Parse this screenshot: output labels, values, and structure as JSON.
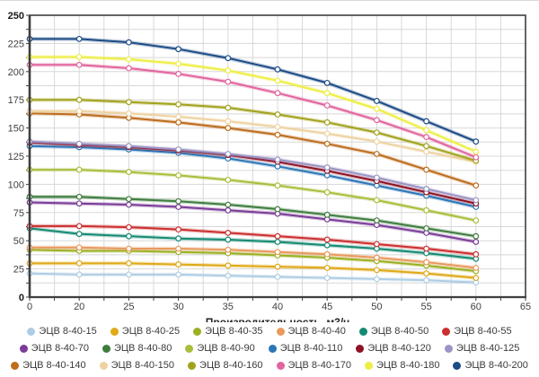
{
  "chart_data": {
    "type": "line",
    "title": "",
    "xlabel": "Производительность, м3/ч",
    "ylabel": "",
    "x_tick_labels": [
      "0",
      "20",
      "25",
      "30",
      "35",
      "40",
      "45",
      "50",
      "55",
      "60",
      "65"
    ],
    "data_x_categories": [
      "0",
      "20",
      "25",
      "30",
      "35",
      "40",
      "45",
      "50",
      "55",
      "60"
    ],
    "ylim": [
      0,
      250
    ],
    "y_major_step": 25,
    "y_minor_step": 12.5,
    "grid": true,
    "legend_position": "bottom",
    "marker": "open-circle",
    "axis_color": "#3f3f3f",
    "grid_color": "#d8d8d8",
    "series": [
      {
        "name": "ЭЦВ 8-40-15",
        "color": "#aecde4",
        "values": [
          21,
          20,
          20,
          20,
          19,
          18,
          17,
          16,
          15,
          13
        ]
      },
      {
        "name": "ЭЦВ 8-40-25",
        "color": "#dfa918",
        "values": [
          30,
          30,
          30,
          29,
          28,
          27,
          26,
          24,
          21,
          17
        ]
      },
      {
        "name": "ЭЦВ 8-40-35",
        "color": "#9cb023",
        "values": [
          42,
          41,
          41,
          40,
          39,
          37,
          35,
          32,
          28,
          23
        ]
      },
      {
        "name": "ЭЦВ 8-40-40",
        "color": "#e9995d",
        "values": [
          44,
          44,
          43,
          43,
          42,
          40,
          38,
          35,
          31,
          26
        ]
      },
      {
        "name": "ЭЦВ 8-40-50",
        "color": "#158a72",
        "values": [
          61,
          56,
          54,
          52,
          51,
          49,
          46,
          43,
          39,
          34
        ]
      },
      {
        "name": "ЭЦВ 8-40-55",
        "color": "#cb2f2f",
        "values": [
          63,
          63,
          62,
          60,
          57,
          54,
          51,
          47,
          43,
          38
        ]
      },
      {
        "name": "ЭЦВ 8-40-70",
        "color": "#7b3c98",
        "values": [
          84,
          83,
          82,
          80,
          77,
          74,
          69,
          64,
          57,
          49
        ]
      },
      {
        "name": "ЭЦВ 8-40-80",
        "color": "#3e7d3e",
        "values": [
          89,
          89,
          87,
          85,
          82,
          78,
          73,
          68,
          61,
          54
        ]
      },
      {
        "name": "ЭЦВ 8-40-90",
        "color": "#a8bf3c",
        "values": [
          113,
          113,
          111,
          108,
          104,
          99,
          93,
          86,
          77,
          68
        ]
      },
      {
        "name": "ЭЦВ 8-40-110",
        "color": "#2c76b7",
        "values": [
          134,
          133,
          131,
          128,
          123,
          116,
          108,
          99,
          90,
          80
        ]
      },
      {
        "name": "ЭЦВ 8-40-120",
        "color": "#8e1224",
        "values": [
          137,
          135,
          133,
          130,
          126,
          120,
          112,
          103,
          93,
          83
        ]
      },
      {
        "name": "ЭЦВ 8-40-125",
        "color": "#9b94c5",
        "values": [
          138,
          136,
          134,
          131,
          127,
          122,
          115,
          106,
          96,
          86
        ]
      },
      {
        "name": "ЭЦВ 8-40-140",
        "color": "#bd6d1d",
        "values": [
          163,
          162,
          159,
          155,
          150,
          144,
          136,
          127,
          113,
          99
        ]
      },
      {
        "name": "ЭЦВ 8-40-150",
        "color": "#eed3a2",
        "values": [
          165,
          165,
          163,
          160,
          156,
          151,
          145,
          138,
          129,
          120
        ]
      },
      {
        "name": "ЭЦВ 8-40-160",
        "color": "#a2a21e",
        "values": [
          175,
          175,
          173,
          171,
          168,
          162,
          155,
          146,
          134,
          121
        ]
      },
      {
        "name": "ЭЦВ 8-40-170",
        "color": "#e2649e",
        "values": [
          206,
          206,
          203,
          198,
          191,
          181,
          170,
          157,
          142,
          124
        ]
      },
      {
        "name": "ЭЦВ 8-40-180",
        "color": "#eeee44",
        "values": [
          213,
          213,
          211,
          207,
          201,
          192,
          181,
          167,
          148,
          129
        ]
      },
      {
        "name": "ЭЦВ 8-40-200",
        "color": "#1c4b86",
        "values": [
          229,
          229,
          226,
          220,
          212,
          202,
          190,
          174,
          156,
          138
        ]
      }
    ]
  }
}
